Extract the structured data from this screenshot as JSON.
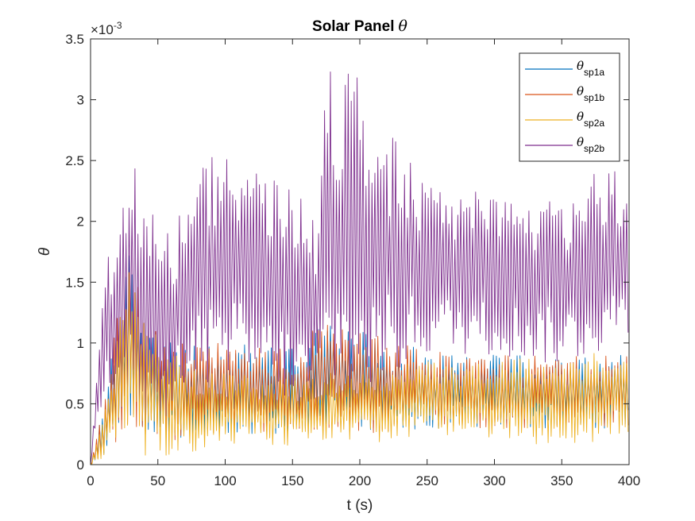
{
  "chart_data": {
    "type": "line",
    "title": "Solar Panel θ",
    "title_plain": "Solar Panel",
    "title_symbol": "θ",
    "xlabel": "t (s)",
    "ylabel": "θ",
    "y_exponent_label": "×10",
    "y_exponent_power": "-3",
    "xlim": [
      0,
      400
    ],
    "ylim": [
      0,
      3.5
    ],
    "x_ticks": [
      0,
      50,
      100,
      150,
      200,
      250,
      300,
      350,
      400
    ],
    "x_tick_labels": [
      "0",
      "50",
      "100",
      "150",
      "200",
      "250",
      "300",
      "350",
      "400"
    ],
    "y_ticks": [
      0,
      0.5,
      1,
      1.5,
      2,
      2.5,
      3,
      3.5
    ],
    "y_tick_labels": [
      "0",
      "0.5",
      "1",
      "1.5",
      "2",
      "2.5",
      "3",
      "3.5"
    ],
    "grid": false,
    "legend_position": "top-right",
    "series": [
      {
        "name": "θsp1a",
        "symbol": "θ",
        "subscript": "sp1a",
        "color": "#0072BD",
        "envelope_x": [
          0,
          10,
          20,
          30,
          40,
          60,
          80,
          100,
          150,
          175,
          200,
          250,
          300,
          350,
          400
        ],
        "envelope_low": [
          0,
          0.05,
          0.2,
          0.3,
          0.2,
          0.2,
          0.2,
          0.25,
          0.25,
          0.25,
          0.25,
          0.3,
          0.3,
          0.3,
          0.3
        ],
        "envelope_high": [
          0,
          0.5,
          1.3,
          1.8,
          1.2,
          1.0,
          1.0,
          1.0,
          0.95,
          1.2,
          1.1,
          0.95,
          0.9,
          0.9,
          0.9
        ]
      },
      {
        "name": "θsp1b",
        "symbol": "θ",
        "subscript": "sp1b",
        "color": "#D95319",
        "envelope_x": [
          0,
          10,
          20,
          30,
          40,
          60,
          80,
          100,
          150,
          175,
          200,
          250,
          300,
          350,
          400
        ],
        "envelope_low": [
          0,
          0.05,
          0.2,
          0.3,
          0.2,
          0.2,
          0.2,
          0.25,
          0.25,
          0.25,
          0.25,
          0.3,
          0.3,
          0.3,
          0.3
        ],
        "envelope_high": [
          0,
          0.5,
          1.3,
          1.8,
          1.2,
          1.0,
          1.0,
          1.0,
          0.95,
          1.2,
          1.1,
          0.95,
          0.9,
          0.9,
          0.9
        ]
      },
      {
        "name": "θsp2a",
        "symbol": "θ",
        "subscript": "sp2a",
        "color": "#EDB120",
        "envelope_x": [
          0,
          10,
          20,
          30,
          40,
          60,
          80,
          100,
          150,
          175,
          200,
          250,
          300,
          350,
          400
        ],
        "envelope_low": [
          0,
          0.02,
          0.05,
          0.0,
          0.05,
          0.05,
          0.1,
          0.15,
          0.15,
          0.2,
          0.15,
          0.25,
          0.2,
          0.15,
          0.2
        ],
        "envelope_high": [
          0,
          0.4,
          1.1,
          1.9,
          1.2,
          0.95,
          0.8,
          0.75,
          0.7,
          0.75,
          0.8,
          0.85,
          0.85,
          0.9,
          0.95
        ]
      },
      {
        "name": "θsp2b",
        "symbol": "θ",
        "subscript": "sp2b",
        "color": "#7E2F8E",
        "envelope_x": [
          0,
          10,
          20,
          30,
          40,
          50,
          60,
          80,
          100,
          125,
          150,
          170,
          175,
          200,
          225,
          250,
          300,
          350,
          375,
          400
        ],
        "envelope_low": [
          0,
          0.6,
          0.5,
          0.3,
          0.2,
          0.3,
          0.4,
          0.6,
          0.7,
          0.6,
          0.5,
          0.5,
          0.6,
          0.5,
          0.7,
          0.9,
          0.9,
          0.8,
          0.9,
          1.0
        ],
        "envelope_high": [
          0,
          1.75,
          1.8,
          2.55,
          2.3,
          2.0,
          1.95,
          2.4,
          2.7,
          2.55,
          2.3,
          2.1,
          3.3,
          3.2,
          2.7,
          2.35,
          2.2,
          2.2,
          2.4,
          2.45
        ]
      }
    ]
  }
}
